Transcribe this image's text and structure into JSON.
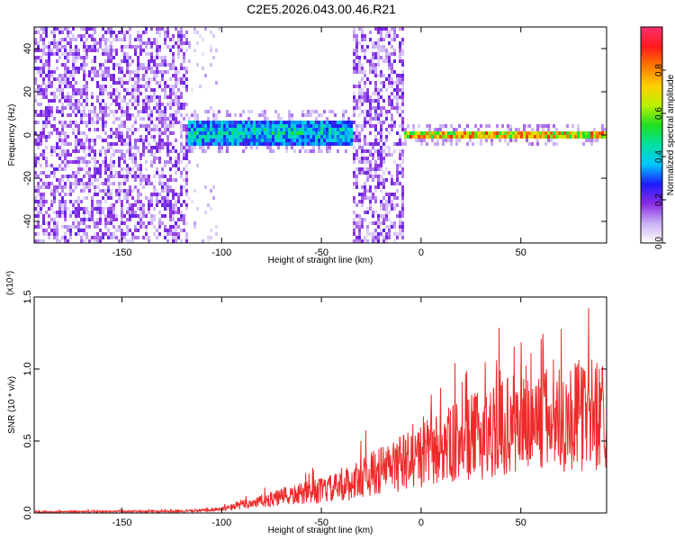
{
  "title": "C2E5.2026.043.00.46.R21",
  "chart_data": [
    {
      "type": "heatmap",
      "xlabel": "Height of straight line (km)",
      "ylabel": "Frequency (Hz)",
      "xlim": [
        -194,
        93
      ],
      "ylim": [
        -50,
        50
      ],
      "x_ticks": [
        -150,
        -100,
        -50,
        0,
        50
      ],
      "y_ticks": [
        -40,
        -20,
        0,
        20,
        40
      ],
      "colorbar": {
        "label": "Normalized spectral amplitude",
        "range": [
          0.0,
          1.0
        ],
        "ticks": [
          0.0,
          0.2,
          0.4,
          0.6,
          0.8
        ],
        "colors": [
          "#ffffff",
          "#c9b0f5",
          "#8a2be2",
          "#1c1cff",
          "#00c8ff",
          "#00e0a0",
          "#20e020",
          "#b8f000",
          "#ffd000",
          "#ff7a00",
          "#ff1a1a",
          "#ff3070"
        ]
      },
      "regions": [
        {
          "x_range": [
            -194,
            -117
          ],
          "band_hz": null,
          "level": 0.2,
          "description": "noise"
        },
        {
          "x_range": [
            -117,
            -34
          ],
          "band_hz": [
            -5,
            7
          ],
          "level": 0.45
        },
        {
          "x_range": [
            -34,
            -9
          ],
          "band_hz": null,
          "level": 0.2,
          "description": "noise"
        },
        {
          "x_range": [
            -9,
            93
          ],
          "band_hz": [
            -1.5,
            1.5
          ],
          "level": 0.9
        }
      ],
      "grid": false
    },
    {
      "type": "line",
      "xlabel": "Height of straight line (km)",
      "ylabel": "SNR (10 * v/v)",
      "y_multiplier": "(x10⁴)",
      "xlim": [
        -194,
        93
      ],
      "ylim": [
        0.0,
        1.5
      ],
      "x_ticks": [
        -150,
        -100,
        -50,
        0,
        50
      ],
      "y_ticks": [
        0.0,
        0.5,
        1.0,
        1.5
      ],
      "color": "#ee2a2a",
      "envelope_x": [
        -194,
        -120,
        -110,
        -100,
        -90,
        -80,
        -70,
        -60,
        -50,
        -40,
        -35,
        -30,
        -20,
        -10,
        0,
        10,
        20,
        30,
        40,
        50,
        60,
        70,
        80,
        93
      ],
      "envelope_y": [
        0.01,
        0.015,
        0.02,
        0.03,
        0.07,
        0.1,
        0.13,
        0.16,
        0.19,
        0.22,
        0.25,
        0.3,
        0.36,
        0.42,
        0.48,
        0.55,
        0.6,
        0.66,
        0.72,
        0.76,
        0.78,
        0.8,
        0.82,
        0.85
      ],
      "grid": false
    }
  ]
}
